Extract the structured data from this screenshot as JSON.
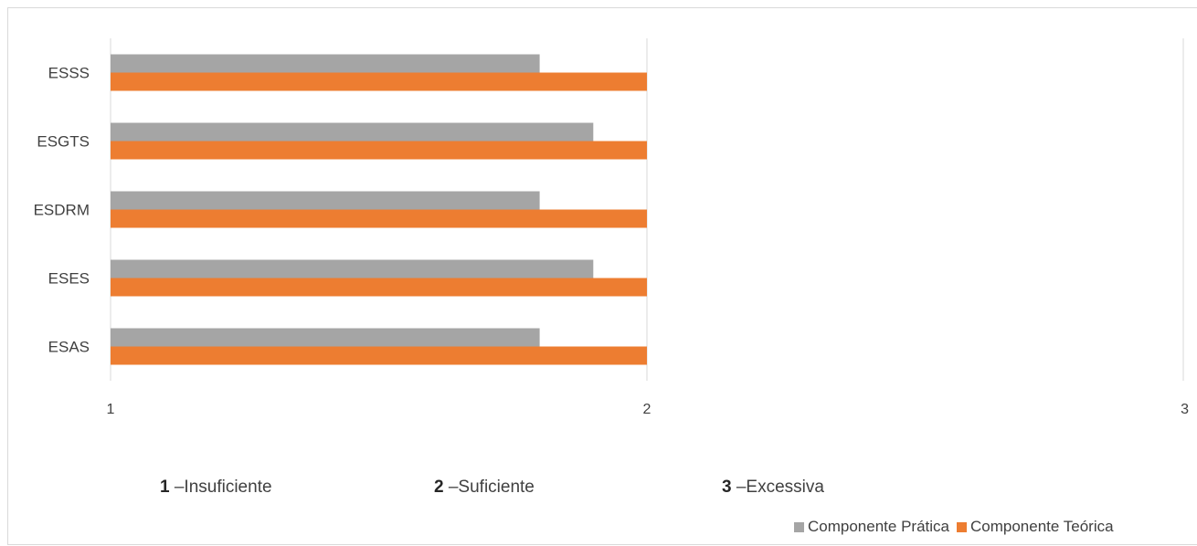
{
  "chart_data": {
    "type": "bar",
    "orientation": "horizontal",
    "categories": [
      "ESSS",
      "ESGTS",
      "ESDRM",
      "ESES",
      "ESAS"
    ],
    "series": [
      {
        "name": "Componente Prática",
        "color": "#a5a5a5",
        "values": [
          1.8,
          1.9,
          1.8,
          1.9,
          1.8
        ]
      },
      {
        "name": "Componente Teórica",
        "color": "#ed7d31",
        "values": [
          2,
          2,
          2,
          2,
          2
        ]
      }
    ],
    "xlim": [
      1,
      3
    ],
    "xticks": [
      "1",
      "2",
      "3"
    ],
    "grid": true,
    "legend_position": "bottom-right"
  },
  "scale_notes": [
    {
      "num": "1",
      "text": " –Insuficiente"
    },
    {
      "num": "2",
      "text": " –Suficiente"
    },
    {
      "num": "3",
      "text": " –Excessiva"
    }
  ]
}
